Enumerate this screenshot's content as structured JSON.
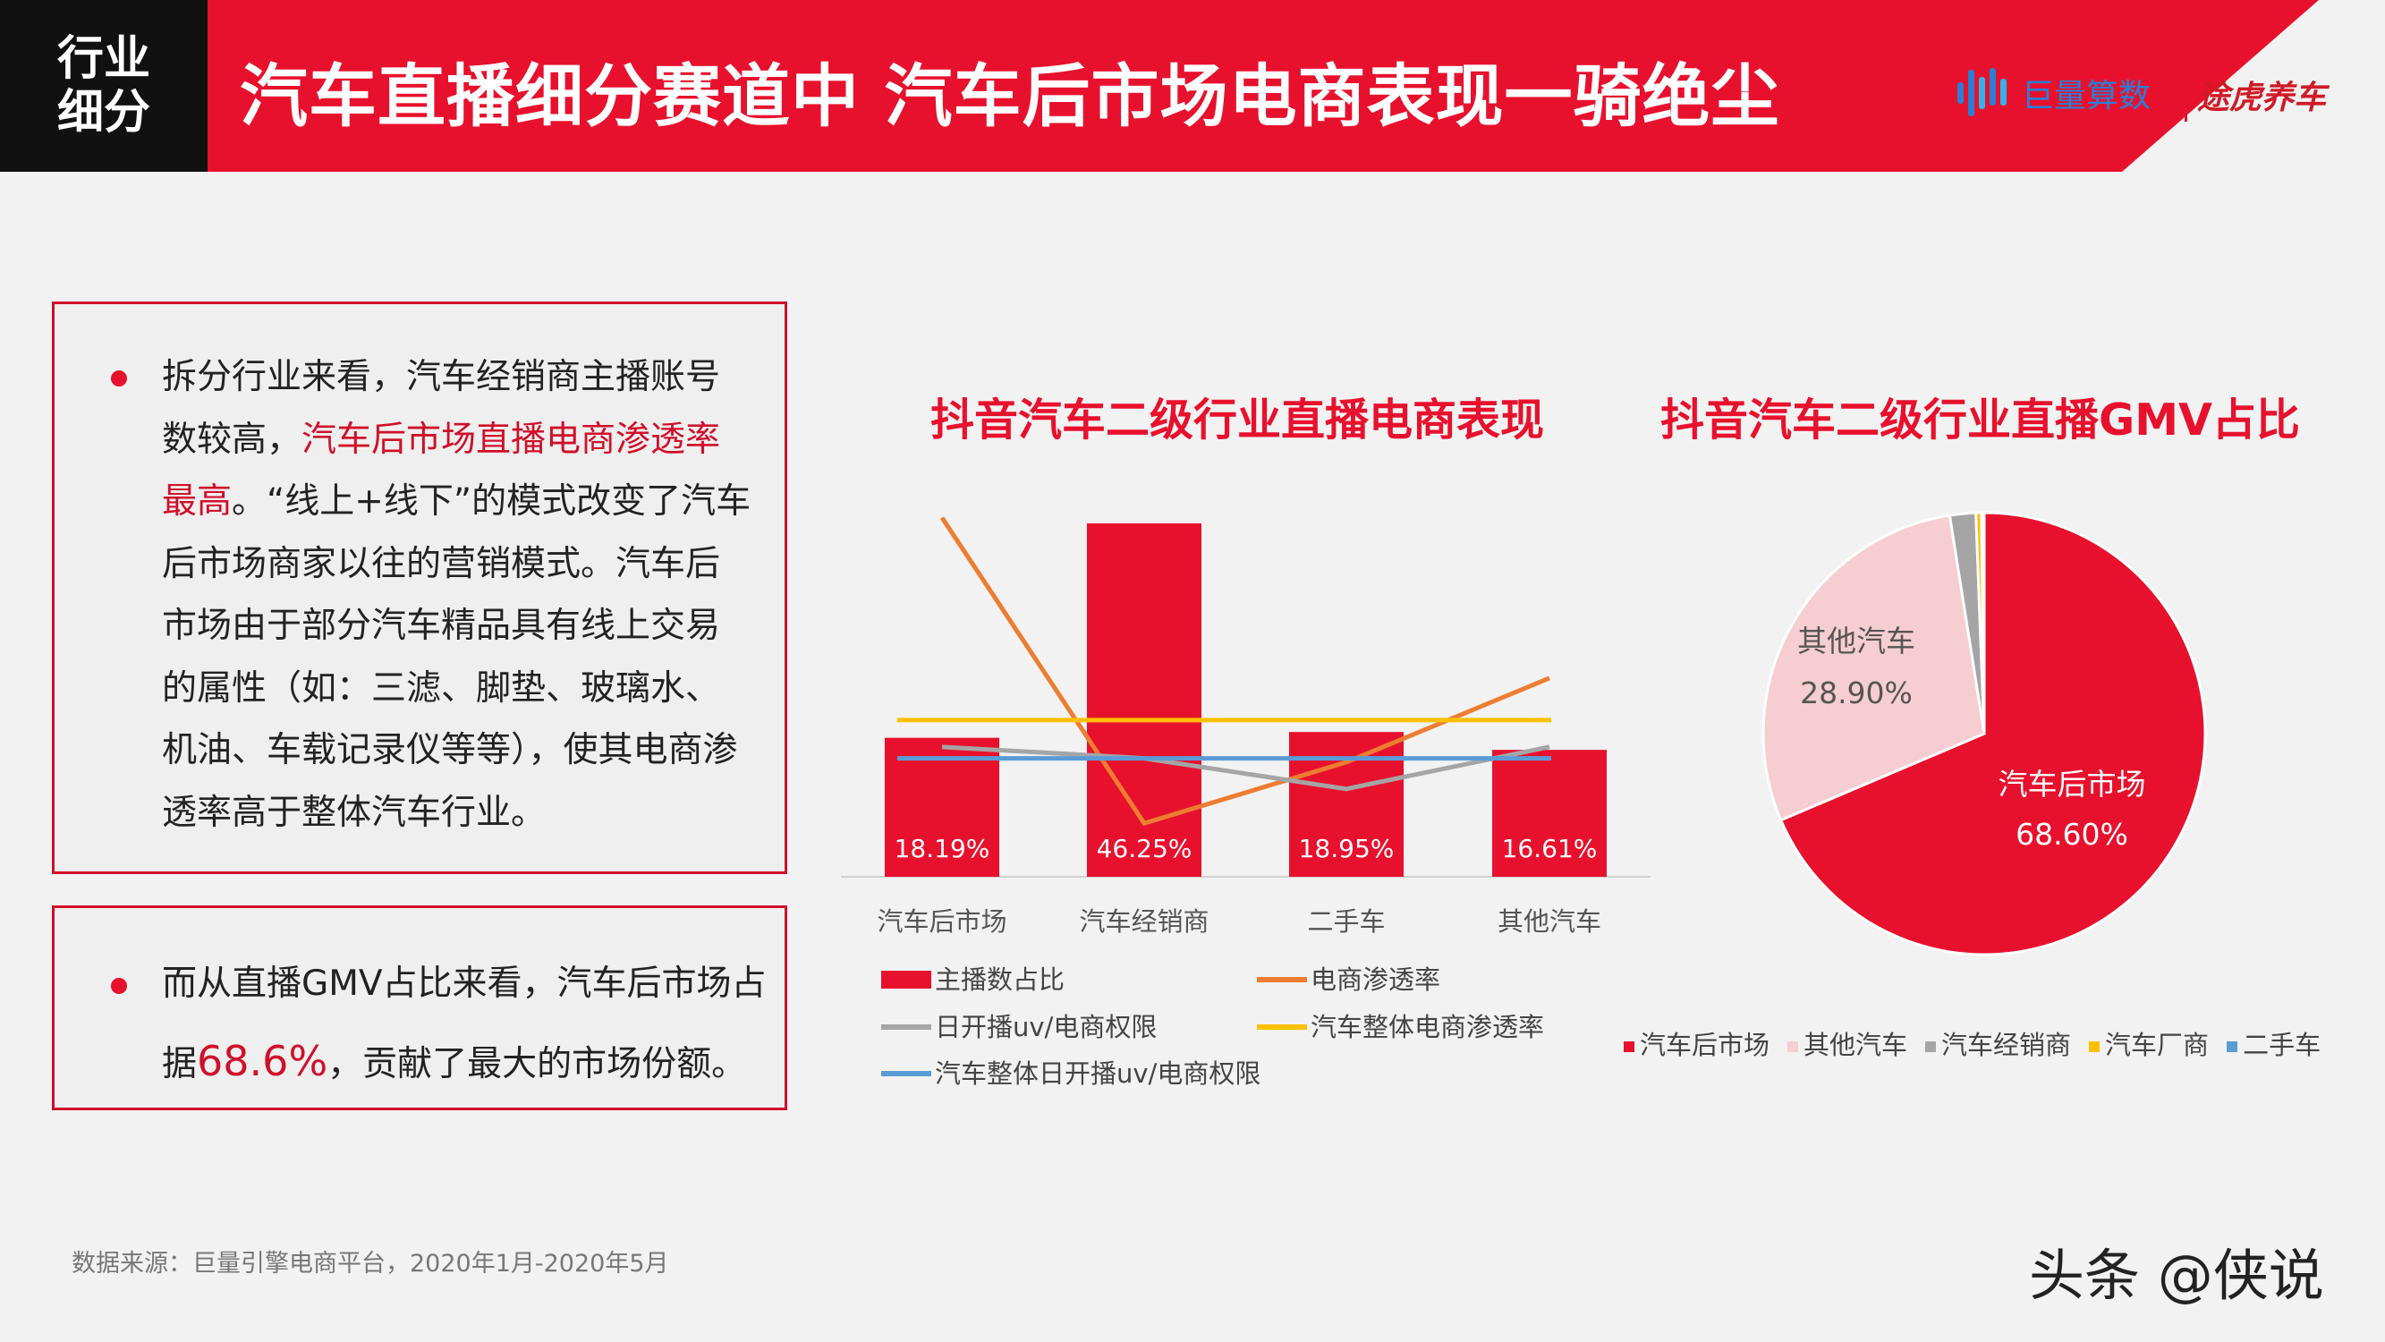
{
  "header": {
    "tag_line1": "行业",
    "tag_line2": "细分",
    "title": "汽车直播细分赛道中 汽车后市场电商表现一骑绝尘",
    "logo1": "巨量算数",
    "logo2": "途虎养车",
    "colors": {
      "red": "#e8112d",
      "dark": "#111111"
    }
  },
  "box1": {
    "seg1": "拆分行业来看，汽车经销商主播账号数较高，",
    "highlight": "汽车后市场直播电商渗透率最高",
    "seg2": "。“线上+线下”的模式改变了汽车后市场商家以往的营销模式。汽车后市场由于部分汽车精品具有线上交易的属性（如：三滤、脚垫、玻璃水、机油、车载记录仪等等），使其电商渗透率高于整体汽车行业。"
  },
  "box2": {
    "seg1": "而从直播GMV占比来看，汽车后市场占据",
    "highlight": "68.6%",
    "seg2": "，贡献了最大的市场份额。"
  },
  "source": "数据来源：巨量引擎电商平台，2020年1月-2020年5月",
  "watermark": "头条 @侠说",
  "chart_data": [
    {
      "type": "bar",
      "title": "抖音汽车二级行业直播电商表现",
      "categories": [
        "汽车后市场",
        "汽车经销商",
        "二手车",
        "其他汽车"
      ],
      "series": [
        {
          "name": "主播数占比",
          "kind": "bar",
          "color": "#e8112d",
          "values": [
            18.19,
            46.25,
            18.95,
            16.61
          ],
          "labels": [
            "18.19%",
            "46.25%",
            "18.95%",
            "16.61%"
          ]
        },
        {
          "name": "电商渗透率",
          "kind": "line",
          "color": "#ed7d31",
          "values": [
            47,
            7,
            15,
            26
          ]
        },
        {
          "name": "日开播uv/电商权限",
          "kind": "line",
          "color": "#a5a5a5",
          "values": [
            17,
            15.5,
            11.5,
            17
          ]
        },
        {
          "name": "汽车整体电商渗透率",
          "kind": "line",
          "color": "#ffc000",
          "values": [
            20.5,
            20.5,
            20.5,
            20.5
          ]
        },
        {
          "name": "汽车整体日开播uv/电商权限",
          "kind": "line",
          "color": "#5b9bd5",
          "values": [
            15.5,
            15.5,
            15.5,
            15.5
          ]
        }
      ],
      "ylim": [
        0,
        50
      ],
      "legend": "bottom"
    },
    {
      "type": "pie",
      "title": "抖音汽车二级行业直播GMV占比",
      "labels": [
        "汽车后市场",
        "其他汽车",
        "汽车经销商",
        "汽车厂商",
        "二手车"
      ],
      "values": [
        68.6,
        28.9,
        1.9,
        0.4,
        0.2
      ],
      "value_labels": [
        "68.60%",
        "28.90%",
        "",
        "",
        ""
      ],
      "colors": [
        "#e8112d",
        "#f6cdd0",
        "#a5a5a5",
        "#ffc000",
        "#5b9bd5"
      ],
      "legend": "bottom"
    }
  ]
}
